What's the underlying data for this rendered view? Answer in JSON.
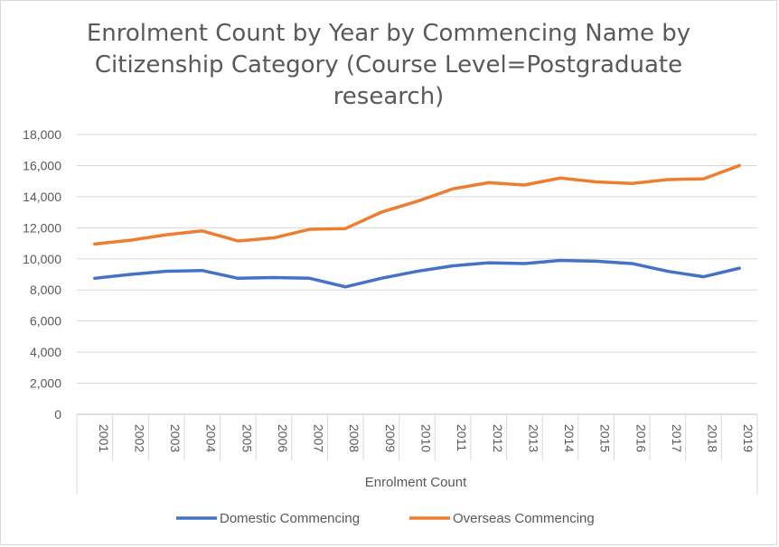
{
  "chart_data": {
    "type": "line",
    "title": "Enrolment Count by Year by Commencing Name by Citizenship Category (Course Level=Postgraduate research)",
    "xlabel": "Enrolment Count",
    "ylabel": "",
    "ylim": [
      0,
      18000
    ],
    "yticks": [
      "0",
      "2,000",
      "4,000",
      "6,000",
      "8,000",
      "10,000",
      "12,000",
      "14,000",
      "16,000",
      "18,000"
    ],
    "grid": true,
    "legend_position": "bottom",
    "categories": [
      "2001",
      "2002",
      "2003",
      "2004",
      "2005",
      "2006",
      "2007",
      "2008",
      "2009",
      "2010",
      "2011",
      "2012",
      "2013",
      "2014",
      "2015",
      "2016",
      "2017",
      "2018",
      "2019"
    ],
    "series": [
      {
        "name": "Domestic Commencing",
        "color": "#4472c4",
        "values": [
          8750,
          9000,
          9200,
          9250,
          8750,
          8800,
          8750,
          8200,
          8750,
          9200,
          9550,
          9750,
          9700,
          9900,
          9850,
          9700,
          9200,
          8850,
          9400
        ]
      },
      {
        "name": "Overseas Commencing",
        "color": "#ed7d31",
        "values": [
          10950,
          11200,
          11550,
          11800,
          11150,
          11350,
          11900,
          11950,
          13000,
          13700,
          14500,
          14900,
          14750,
          15200,
          14950,
          14850,
          15100,
          15150,
          16000
        ]
      }
    ]
  }
}
